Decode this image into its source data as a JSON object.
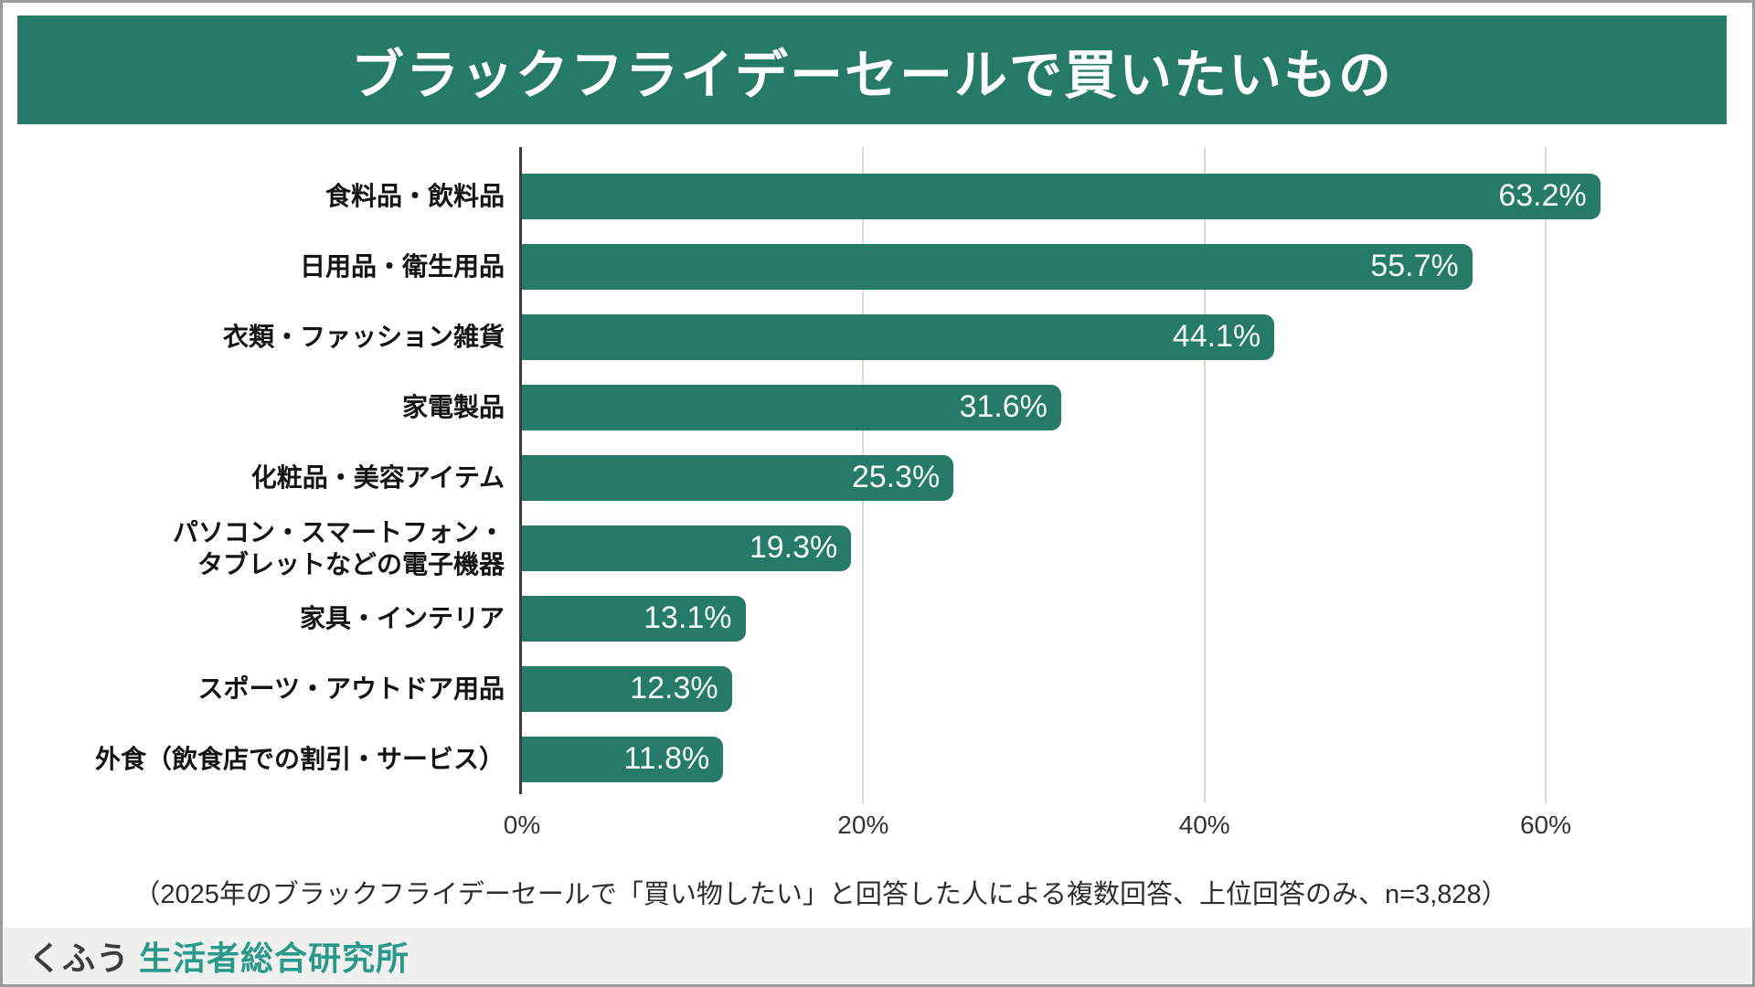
{
  "title": "ブラックフライデーセールで買いたいもの",
  "note": "（2025年のブラックフライデーセールで「買い物したい」と回答した人による複数回答、上位回答のみ、n=3,828）",
  "footer": {
    "logo_prefix": "くふう",
    "logo_name": "生活者総合研究所"
  },
  "colors": {
    "bar": "#257a68",
    "banner": "#257a68",
    "value_label": "#f5faf8",
    "gridline": "#d9d9d9",
    "axis_line": "#3d3d3d",
    "logo_accent": "#2a998c",
    "footer_background": "#f0f0ef"
  },
  "chart_data": {
    "type": "bar",
    "orientation": "horizontal",
    "title": "ブラックフライデーセールで買いたいもの",
    "categories": [
      "食料品・飲料品",
      "日用品・衛生用品",
      "衣類・ファッション雑貨",
      "家電製品",
      "化粧品・美容アイテム",
      "パソコン・スマートフォン・\nタブレットなどの電子機器",
      "家具・インテリア",
      "スポーツ・アウトドア用品",
      "外食（飲食店での割引・サービス）"
    ],
    "values": [
      63.2,
      55.7,
      44.1,
      31.6,
      25.3,
      19.3,
      13.1,
      12.3,
      11.8
    ],
    "value_labels": [
      "63.2%",
      "55.7%",
      "44.1%",
      "31.6%",
      "25.3%",
      "19.3%",
      "13.1%",
      "12.3%",
      "11.8%"
    ],
    "value_label_position": "inside-end",
    "xlabel": "",
    "ylabel": "",
    "xlim": [
      0,
      66
    ],
    "x_ticks": [
      {
        "value": 0,
        "label": "0%"
      },
      {
        "value": 20,
        "label": "20%"
      },
      {
        "value": 40,
        "label": "40%"
      },
      {
        "value": 60,
        "label": "60%"
      }
    ],
    "grid": "vertical-gridlines",
    "legend": "none"
  }
}
